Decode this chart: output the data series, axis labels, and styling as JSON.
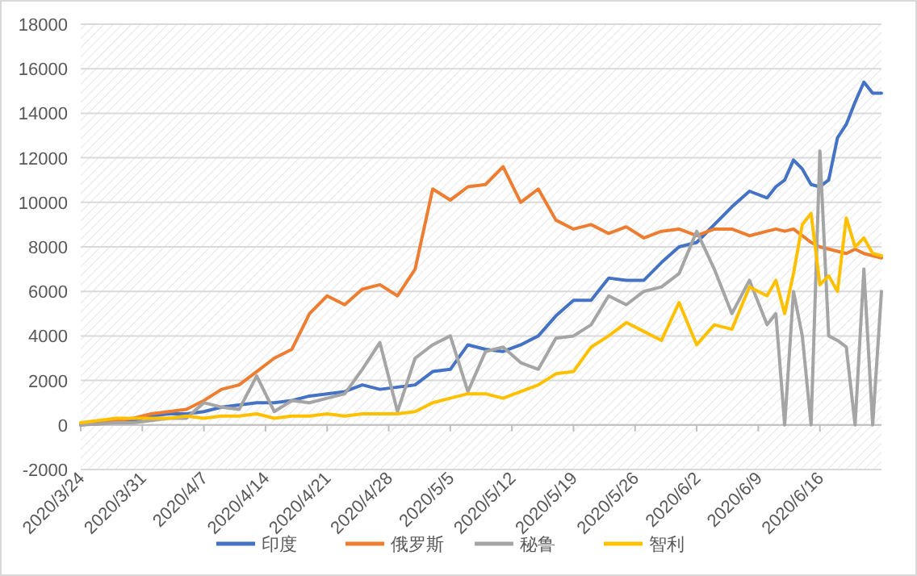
{
  "chart_data": {
    "type": "line",
    "x": [
      "2020-03-24",
      "2020-03-26",
      "2020-03-28",
      "2020-03-30",
      "2020-04-01",
      "2020-04-03",
      "2020-04-05",
      "2020-04-07",
      "2020-04-09",
      "2020-04-11",
      "2020-04-13",
      "2020-04-15",
      "2020-04-17",
      "2020-04-19",
      "2020-04-21",
      "2020-04-23",
      "2020-04-25",
      "2020-04-27",
      "2020-04-29",
      "2020-05-01",
      "2020-05-03",
      "2020-05-05",
      "2020-05-07",
      "2020-05-09",
      "2020-05-11",
      "2020-05-13",
      "2020-05-15",
      "2020-05-17",
      "2020-05-19",
      "2020-05-21",
      "2020-05-23",
      "2020-05-25",
      "2020-05-27",
      "2020-05-29",
      "2020-05-31",
      "2020-06-02",
      "2020-06-04",
      "2020-06-06",
      "2020-06-08",
      "2020-06-10",
      "2020-06-11",
      "2020-06-12",
      "2020-06-13",
      "2020-06-14",
      "2020-06-15",
      "2020-06-16",
      "2020-06-17",
      "2020-06-18",
      "2020-06-19",
      "2020-06-20",
      "2020-06-21",
      "2020-06-22",
      "2020-06-23"
    ],
    "series": [
      {
        "name": "印度",
        "color": "#4472c4",
        "values": [
          0,
          100,
          150,
          200,
          400,
          500,
          500,
          600,
          800,
          900,
          1000,
          1000,
          1100,
          1300,
          1400,
          1500,
          1800,
          1600,
          1700,
          1800,
          2400,
          2500,
          3600,
          3400,
          3300,
          3600,
          4000,
          4900,
          5600,
          5600,
          6600,
          6500,
          6500,
          7300,
          8000,
          8200,
          9000,
          9800,
          10500,
          10200,
          10700,
          11000,
          11900,
          11500,
          10800,
          10700,
          11000,
          12900,
          13500,
          14500,
          15400,
          14900,
          14900
        ]
      },
      {
        "name": "俄罗斯",
        "color": "#ed7d31",
        "values": [
          20,
          50,
          200,
          300,
          500,
          600,
          700,
          1100,
          1600,
          1800,
          2400,
          3000,
          3400,
          5000,
          5800,
          5400,
          6100,
          6300,
          5800,
          7000,
          10600,
          10100,
          10700,
          10800,
          11600,
          10000,
          10600,
          9200,
          8800,
          9000,
          8600,
          8900,
          8400,
          8700,
          8800,
          8500,
          8800,
          8800,
          8500,
          8700,
          8800,
          8700,
          8800,
          8500,
          8200,
          8000,
          7900,
          7800,
          7700,
          7900,
          7700,
          7600,
          7500
        ]
      },
      {
        "name": "秘鲁",
        "color": "#a5a5a5",
        "values": [
          0,
          50,
          100,
          100,
          200,
          300,
          300,
          1000,
          800,
          700,
          2200,
          600,
          1100,
          1000,
          1200,
          1400,
          2500,
          3700,
          600,
          3000,
          3600,
          4000,
          1500,
          3300,
          3500,
          2800,
          2500,
          3900,
          4000,
          4500,
          5800,
          5400,
          6000,
          6200,
          6800,
          8700,
          7000,
          5000,
          6500,
          4500,
          5000,
          0,
          6000,
          4000,
          0,
          12300,
          4000,
          3800,
          3500,
          0,
          7000,
          0,
          6000
        ]
      },
      {
        "name": "智利",
        "color": "#ffc000",
        "values": [
          100,
          200,
          300,
          300,
          300,
          300,
          400,
          300,
          400,
          400,
          500,
          300,
          400,
          400,
          500,
          400,
          500,
          500,
          500,
          600,
          1000,
          1200,
          1400,
          1400,
          1200,
          1500,
          1800,
          2300,
          2400,
          3500,
          4000,
          4600,
          4200,
          3800,
          5500,
          3600,
          4500,
          4300,
          6200,
          5800,
          6500,
          5000,
          6800,
          9000,
          9500,
          6300,
          6700,
          6000,
          9300,
          8000,
          8400,
          7700,
          7600
        ]
      }
    ],
    "xlim": [
      "2020-03-24",
      "2020-06-23"
    ],
    "xticks": [
      {
        "value": "2020-03-24",
        "label": "2020/3/24"
      },
      {
        "value": "2020-03-31",
        "label": "2020/3/31"
      },
      {
        "value": "2020-04-07",
        "label": "2020/4/7"
      },
      {
        "value": "2020-04-14",
        "label": "2020/4/14"
      },
      {
        "value": "2020-04-21",
        "label": "2020/4/21"
      },
      {
        "value": "2020-04-28",
        "label": "2020/4/28"
      },
      {
        "value": "2020-05-05",
        "label": "2020/5/5"
      },
      {
        "value": "2020-05-12",
        "label": "2020/5/12"
      },
      {
        "value": "2020-05-19",
        "label": "2020/5/19"
      },
      {
        "value": "2020-05-26",
        "label": "2020/5/26"
      },
      {
        "value": "2020-06-02",
        "label": "2020/6/2"
      },
      {
        "value": "2020-06-09",
        "label": "2020/6/9"
      },
      {
        "value": "2020-06-16",
        "label": "2020/6/16"
      }
    ],
    "ylim": [
      -2000,
      18000
    ],
    "yticks": [
      -2000,
      0,
      2000,
      4000,
      6000,
      8000,
      10000,
      12000,
      14000,
      16000,
      18000
    ],
    "grid": "y",
    "legend": "bottom"
  }
}
